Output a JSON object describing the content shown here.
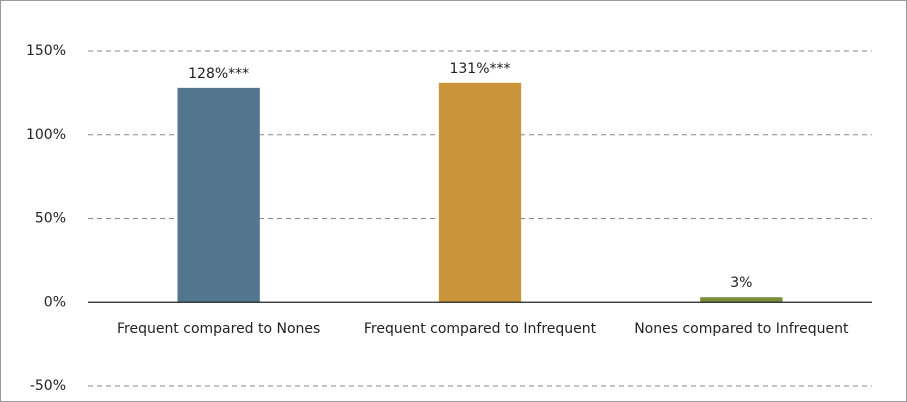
{
  "chart_data": {
    "type": "bar",
    "categories": [
      "Frequent compared to Nones",
      "Frequent compared to Infrequent",
      "Nones compared to Infrequent"
    ],
    "values": [
      128,
      131,
      3
    ],
    "value_labels": [
      "128%***",
      "131%***",
      "3%"
    ],
    "colors": [
      "#52768e",
      "#c9943a",
      "#7d8c3a"
    ],
    "ylim": [
      -50,
      150
    ],
    "yticks": [
      {
        "value": -50,
        "label": "-50%"
      },
      {
        "value": 0,
        "label": "0%"
      },
      {
        "value": 50,
        "label": "50%"
      },
      {
        "value": 100,
        "label": "100%"
      },
      {
        "value": 150,
        "label": "150%"
      }
    ],
    "grid": true
  }
}
